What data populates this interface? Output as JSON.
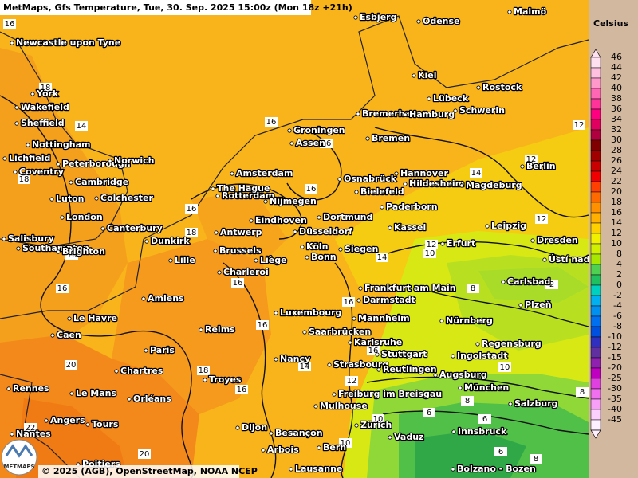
{
  "header": {
    "title": "MetMaps, Gfs Temperature, Tue, 30. Sep. 2025 15:00z (Mon 18z +21h)"
  },
  "footer": {
    "credit": "© 2025 (AGB), OpenStreetMap, NOAA NCEP",
    "logo": "METMAPS"
  },
  "scale": {
    "title": "Celsius",
    "stops": [
      {
        "label": 46,
        "color": "#ffe0f0"
      },
      {
        "label": 44,
        "color": "#ffc0e0"
      },
      {
        "label": 42,
        "color": "#ff99cc"
      },
      {
        "label": 40,
        "color": "#ff66b3"
      },
      {
        "label": 38,
        "color": "#ff3399"
      },
      {
        "label": 36,
        "color": "#ff0080"
      },
      {
        "label": 34,
        "color": "#e00060"
      },
      {
        "label": 32,
        "color": "#b00040"
      },
      {
        "label": 30,
        "color": "#800000"
      },
      {
        "label": 28,
        "color": "#a00000"
      },
      {
        "label": 26,
        "color": "#c80000"
      },
      {
        "label": 24,
        "color": "#f00000"
      },
      {
        "label": 22,
        "color": "#ff4000"
      },
      {
        "label": 20,
        "color": "#ff6a00"
      },
      {
        "label": 18,
        "color": "#ff9000"
      },
      {
        "label": 16,
        "color": "#ffb000"
      },
      {
        "label": 14,
        "color": "#ffd000"
      },
      {
        "label": 12,
        "color": "#f0f000"
      },
      {
        "label": 10,
        "color": "#d0f000"
      },
      {
        "label": 8,
        "color": "#a8e800"
      },
      {
        "label": 4,
        "color": "#50d050"
      },
      {
        "label": 2,
        "color": "#20c060"
      },
      {
        "label": 0,
        "color": "#00d0c0"
      },
      {
        "label": -2,
        "color": "#00b0f0"
      },
      {
        "label": -4,
        "color": "#0090f0"
      },
      {
        "label": -6,
        "color": "#0070f0"
      },
      {
        "label": -8,
        "color": "#0050e0"
      },
      {
        "label": -10,
        "color": "#3030c0"
      },
      {
        "label": -12,
        "color": "#6030a0"
      },
      {
        "label": -15,
        "color": "#9020b0"
      },
      {
        "label": -20,
        "color": "#c000c0"
      },
      {
        "label": -25,
        "color": "#e040e0"
      },
      {
        "label": -30,
        "color": "#f070f0"
      },
      {
        "label": -35,
        "color": "#f8a0f8"
      },
      {
        "label": -40,
        "color": "#fcd0fc"
      },
      {
        "label": -45,
        "color": "#fff0ff"
      }
    ]
  },
  "cities": [
    "Esbjerg",
    "Odense",
    "Malmö",
    "Newcastle upon Tyne",
    "Kiel",
    "York",
    "Rostock",
    "Lübeck",
    "Wakefield",
    "Schwerin",
    "Bremerhaven",
    "Hamburg",
    "Sheffield",
    "Groningen",
    "Bremen",
    "Assen",
    "Nottingham",
    "Lichfield",
    "Peterborough",
    "Norwich",
    "Berlin",
    "Coventry",
    "Amsterdam",
    "Osnabrück",
    "Hannover",
    "Cambridge",
    "Hildesheim",
    "Magdeburg",
    "The Hague",
    "Rotterdam",
    "Nijmegen",
    "Bielefeld",
    "Luton",
    "Colchester",
    "Paderborn",
    "London",
    "Eindhoven",
    "Dortmund",
    "Canterbury",
    "Kassel",
    "Leipzig",
    "Antwerp",
    "Düsseldorf",
    "Salisbury",
    "Dunkirk",
    "Dresden",
    "Southampton",
    "Erfurt",
    "Köln",
    "Siegen",
    "Brussels",
    "Bonn",
    "Brighton",
    "Lille",
    "Liège",
    "Ústí nad Labem",
    "Charleroi",
    "Carlsbad",
    "Frankfurt am Main",
    "Amiens",
    "Darmstadt",
    "Plzeň",
    "Luxembourg",
    "Le Havre",
    "Mannheim",
    "Nürnberg",
    "Caen",
    "Reims",
    "Saarbrücken",
    "Karlsruhe",
    "Regensburg",
    "Paris",
    "Stuttgart",
    "Ingolstadt",
    "Nancy",
    "Strasbourg",
    "Reutlingen",
    "Chartres",
    "Augsburg",
    "Troyes",
    "Rennes",
    "Le Mans",
    "München",
    "Orléans",
    "Freiburg im Breisgau",
    "Mulhouse",
    "Salzburg",
    "Angers",
    "Tours",
    "Zürich",
    "Dijon",
    "Innsbruck",
    "Besançon",
    "Nantes",
    "Vaduz",
    "Bern",
    "Arbois",
    "Poitiers",
    "Lausanne",
    "Bolzano - Bozen"
  ],
  "isoline_labels": [
    16,
    14,
    18,
    16,
    16,
    18,
    16,
    16,
    18,
    16,
    16,
    16,
    16,
    16,
    14,
    12,
    20,
    16,
    18,
    20,
    22,
    14,
    12,
    12,
    12,
    14,
    12,
    10,
    8,
    2,
    10,
    8,
    6,
    6,
    6,
    8,
    8,
    16,
    10,
    10
  ]
}
